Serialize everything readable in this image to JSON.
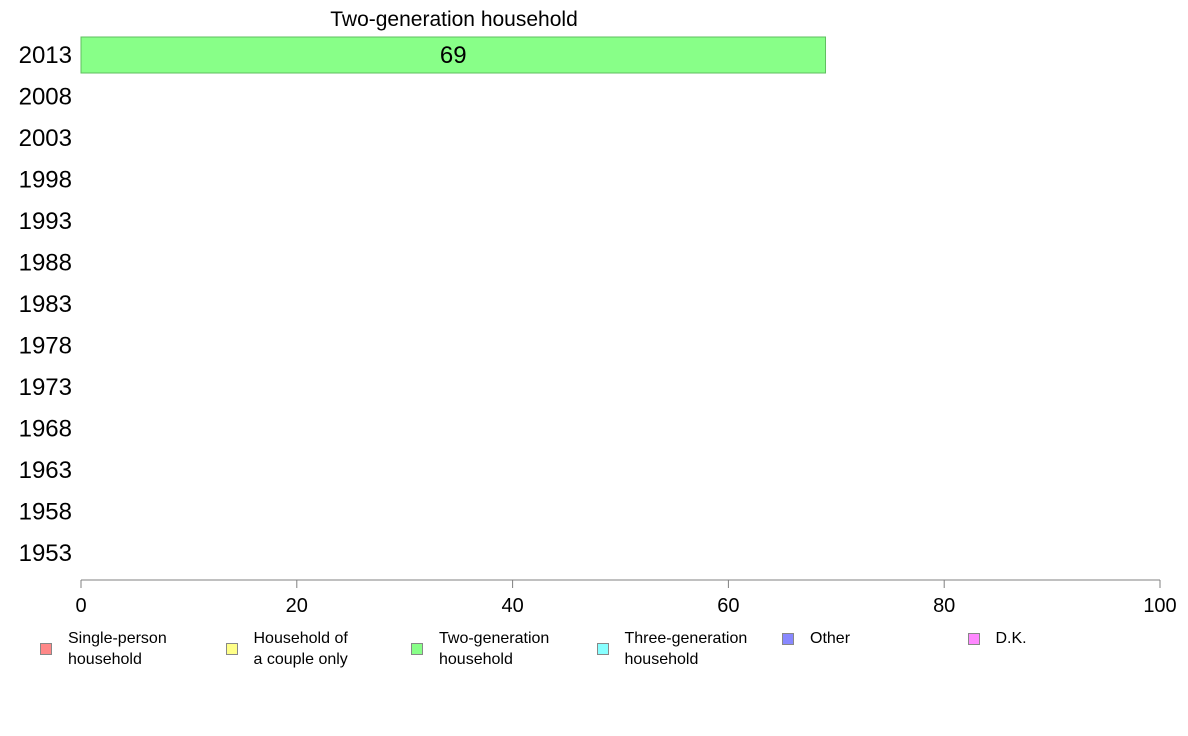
{
  "chart_data": {
    "type": "bar",
    "orientation": "horizontal",
    "stacked": true,
    "categories": [
      "2013",
      "2008",
      "2003",
      "1998",
      "1993",
      "1988",
      "1983",
      "1978",
      "1973",
      "1968",
      "1963",
      "1958",
      "1953"
    ],
    "xlim": [
      0,
      100
    ],
    "xticks": [
      "0",
      "20",
      "40",
      "60",
      "80",
      "100"
    ],
    "visible_series_title": "Two-generation household",
    "series": [
      {
        "name": "Single-person household",
        "legend_label": "Single-person\nhousehold",
        "color": "#ff8888",
        "values": [
          null,
          null,
          null,
          null,
          null,
          null,
          null,
          null,
          null,
          null,
          null,
          null,
          null
        ]
      },
      {
        "name": "Household of a couple only",
        "legend_label": "Household of\na couple only",
        "color": "#ffff88",
        "values": [
          null,
          null,
          null,
          null,
          null,
          null,
          null,
          null,
          null,
          null,
          null,
          null,
          null
        ]
      },
      {
        "name": "Two-generation household",
        "legend_label": "Two-generation\nhousehold",
        "color": "#88ff88",
        "values": [
          69,
          null,
          null,
          null,
          null,
          null,
          null,
          null,
          null,
          null,
          null,
          null,
          null
        ]
      },
      {
        "name": "Three-generation household",
        "legend_label": "Three-generation\nhousehold",
        "color": "#88ffff",
        "values": [
          null,
          null,
          null,
          null,
          null,
          null,
          null,
          null,
          null,
          null,
          null,
          null,
          null
        ]
      },
      {
        "name": "Other",
        "legend_label": "Other",
        "color": "#8888ff",
        "values": [
          null,
          null,
          null,
          null,
          null,
          null,
          null,
          null,
          null,
          null,
          null,
          null,
          null
        ]
      },
      {
        "name": "D.K.",
        "legend_label": "D.K.",
        "color": "#ff88ff",
        "values": [
          null,
          null,
          null,
          null,
          null,
          null,
          null,
          null,
          null,
          null,
          null,
          null,
          null
        ]
      }
    ],
    "legend_position": "bottom",
    "grid": false
  }
}
